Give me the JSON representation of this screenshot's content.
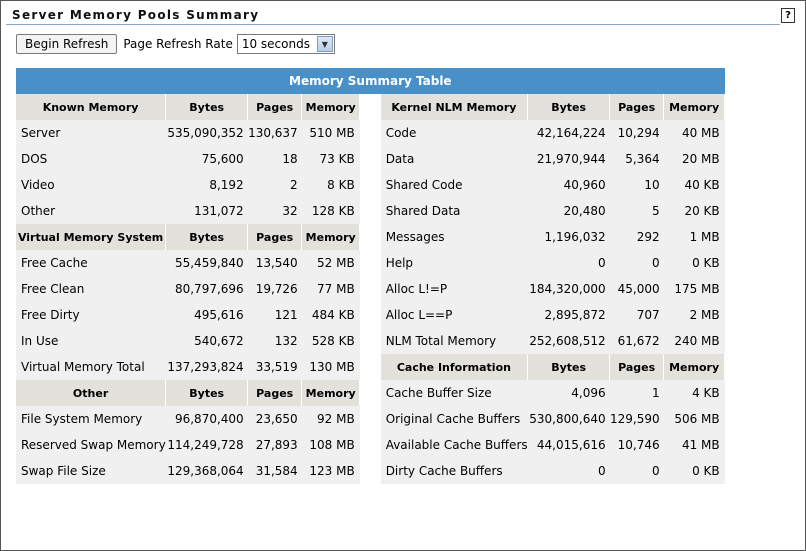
{
  "page": {
    "title": "Server Memory Pools Summary",
    "help_label": "?"
  },
  "toolbar": {
    "refresh_label": "Begin Refresh",
    "rate_label": "Page Refresh Rate",
    "rate_value": "10 seconds"
  },
  "table": {
    "title": "Memory Summary Table",
    "col_bytes": "Bytes",
    "col_pages": "Pages",
    "col_memory": "Memory",
    "left": {
      "known": {
        "header": "Known Memory",
        "rows": [
          {
            "label": "Server",
            "bytes": "535,090,352",
            "pages": "130,637",
            "memory": "510 MB"
          },
          {
            "label": "DOS",
            "bytes": "75,600",
            "pages": "18",
            "memory": "73 KB"
          },
          {
            "label": "Video",
            "bytes": "8,192",
            "pages": "2",
            "memory": "8 KB"
          },
          {
            "label": "Other",
            "bytes": "131,072",
            "pages": "32",
            "memory": "128 KB"
          }
        ]
      },
      "vms": {
        "header": "Virtual Memory System",
        "rows": [
          {
            "label": "Free Cache",
            "bytes": "55,459,840",
            "pages": "13,540",
            "memory": "52 MB"
          },
          {
            "label": "Free Clean",
            "bytes": "80,797,696",
            "pages": "19,726",
            "memory": "77 MB"
          },
          {
            "label": "Free Dirty",
            "bytes": "495,616",
            "pages": "121",
            "memory": "484 KB"
          },
          {
            "label": "In Use",
            "bytes": "540,672",
            "pages": "132",
            "memory": "528 KB"
          },
          {
            "label": "Virtual Memory Total",
            "bytes": "137,293,824",
            "pages": "33,519",
            "memory": "130 MB"
          }
        ]
      },
      "other": {
        "header": "Other",
        "rows": [
          {
            "label": "File System Memory",
            "bytes": "96,870,400",
            "pages": "23,650",
            "memory": "92 MB"
          },
          {
            "label": "Reserved Swap Memory",
            "bytes": "114,249,728",
            "pages": "27,893",
            "memory": "108 MB"
          },
          {
            "label": "Swap File Size",
            "bytes": "129,368,064",
            "pages": "31,584",
            "memory": "123 MB"
          }
        ]
      }
    },
    "right": {
      "kernel": {
        "header": "Kernel NLM Memory",
        "rows": [
          {
            "label": "Code",
            "bytes": "42,164,224",
            "pages": "10,294",
            "memory": "40 MB"
          },
          {
            "label": "Data",
            "bytes": "21,970,944",
            "pages": "5,364",
            "memory": "20 MB"
          },
          {
            "label": "Shared Code",
            "bytes": "40,960",
            "pages": "10",
            "memory": "40 KB"
          },
          {
            "label": "Shared Data",
            "bytes": "20,480",
            "pages": "5",
            "memory": "20 KB"
          },
          {
            "label": "Messages",
            "bytes": "1,196,032",
            "pages": "292",
            "memory": "1 MB"
          },
          {
            "label": "Help",
            "bytes": "0",
            "pages": "0",
            "memory": "0 KB"
          },
          {
            "label": "Alloc L!=P",
            "bytes": "184,320,000",
            "pages": "45,000",
            "memory": "175 MB"
          },
          {
            "label": "Alloc L==P",
            "bytes": "2,895,872",
            "pages": "707",
            "memory": "2 MB"
          },
          {
            "label": "NLM Total Memory",
            "bytes": "252,608,512",
            "pages": "61,672",
            "memory": "240 MB"
          }
        ]
      },
      "cache": {
        "header": "Cache Information",
        "rows": [
          {
            "label": "Cache Buffer Size",
            "bytes": "4,096",
            "pages": "1",
            "memory": "4 KB"
          },
          {
            "label": "Original Cache Buffers",
            "bytes": "530,800,640",
            "pages": "129,590",
            "memory": "506 MB"
          },
          {
            "label": "Available Cache Buffers",
            "bytes": "44,015,616",
            "pages": "10,746",
            "memory": "41 MB"
          },
          {
            "label": "Dirty Cache Buffers",
            "bytes": "0",
            "pages": "0",
            "memory": "0 KB"
          }
        ]
      }
    }
  }
}
